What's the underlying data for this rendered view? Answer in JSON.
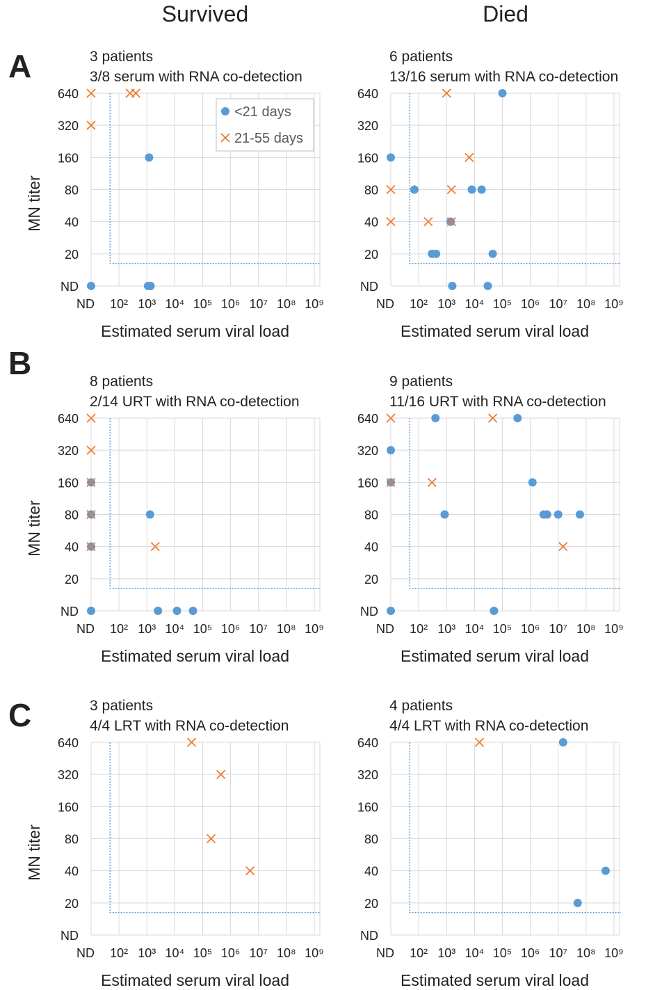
{
  "column_headers": {
    "left": "Survived",
    "right": "Died"
  },
  "row_labels": [
    "A",
    "B",
    "C"
  ],
  "colors": {
    "early": "#5b9bd5",
    "late": "#ed7d31",
    "grid": "#d9d9d9",
    "threshold": "#5b9bd5"
  },
  "chart_data": [
    {
      "type": "scatter",
      "row": "A",
      "column": "Survived",
      "title": "3 patients",
      "subtitle": "3/8 serum with RNA co-detection",
      "xlabel": "Estimated serum viral load",
      "ylabel": "MN titer",
      "x_ticks": [
        "ND",
        "10^2",
        "10^3",
        "10^4",
        "10^5",
        "10^6",
        "10^7",
        "10^8",
        "10^9"
      ],
      "y_ticks": [
        "ND",
        "20",
        "40",
        "80",
        "160",
        "320",
        "640"
      ],
      "legend": {
        "entries": [
          "<21 days",
          "21-55 days"
        ],
        "placement": "top-right"
      },
      "series": [
        {
          "name": "<21 days",
          "points": [
            {
              "x": "ND",
              "y": "ND"
            },
            {
              "x": 1200,
              "y": 160
            },
            {
              "x": 1100,
              "y": "ND"
            },
            {
              "x": 1350,
              "y": "ND"
            }
          ]
        },
        {
          "name": "21-55 days",
          "points": [
            {
              "x": "ND",
              "y": 640
            },
            {
              "x": "ND",
              "y": 320
            },
            {
              "x": 250,
              "y": 640
            },
            {
              "x": 400,
              "y": 640
            }
          ]
        }
      ]
    },
    {
      "type": "scatter",
      "row": "A",
      "column": "Died",
      "title": "6 patients",
      "subtitle": "13/16 serum with RNA co-detection",
      "xlabel": "Estimated serum viral load",
      "ylabel": "",
      "x_ticks": [
        "ND",
        "10^2",
        "10^3",
        "10^4",
        "10^5",
        "10^6",
        "10^7",
        "10^8",
        "10^9"
      ],
      "y_ticks": [
        "ND",
        "20",
        "40",
        "80",
        "160",
        "320",
        "640"
      ],
      "series": [
        {
          "name": "<21 days",
          "points": [
            {
              "x": 100000,
              "y": 640
            },
            {
              "x": "ND",
              "y": 160
            },
            {
              "x": 70,
              "y": 80
            },
            {
              "x": 8000,
              "y": 80
            },
            {
              "x": 18000,
              "y": 80
            },
            {
              "x": 1400,
              "y": 40
            },
            {
              "x": 300,
              "y": 20
            },
            {
              "x": 420,
              "y": 20
            },
            {
              "x": 45000,
              "y": 20
            },
            {
              "x": 1600,
              "y": "ND"
            },
            {
              "x": 30000,
              "y": "ND"
            }
          ]
        },
        {
          "name": "21-55 days",
          "points": [
            {
              "x": 1000,
              "y": 640
            },
            {
              "x": 6500,
              "y": 160
            },
            {
              "x": "ND",
              "y": 80
            },
            {
              "x": 1500,
              "y": 80
            },
            {
              "x": "ND",
              "y": 40
            },
            {
              "x": 220,
              "y": 40
            },
            {
              "x": 1500,
              "y": 40
            }
          ]
        }
      ]
    },
    {
      "type": "scatter",
      "row": "B",
      "column": "Survived",
      "title": "8 patients",
      "subtitle": "2/14 URT with RNA co-detection",
      "xlabel": "Estimated serum viral load",
      "ylabel": "MN titer",
      "x_ticks": [
        "ND",
        "10^2",
        "10^3",
        "10^4",
        "10^5",
        "10^6",
        "10^7",
        "10^8",
        "10^9"
      ],
      "y_ticks": [
        "ND",
        "20",
        "40",
        "80",
        "160",
        "320",
        "640"
      ],
      "series": [
        {
          "name": "<21 days",
          "points": [
            {
              "x": "ND",
              "y": 160
            },
            {
              "x": "ND",
              "y": 80
            },
            {
              "x": "ND",
              "y": 40
            },
            {
              "x": "ND",
              "y": "ND"
            },
            {
              "x": 1300,
              "y": 80
            },
            {
              "x": 2500,
              "y": "ND"
            },
            {
              "x": 12000,
              "y": "ND"
            },
            {
              "x": 45000,
              "y": "ND"
            }
          ]
        },
        {
          "name": "21-55 days",
          "points": [
            {
              "x": "ND",
              "y": 640
            },
            {
              "x": "ND",
              "y": 320
            },
            {
              "x": "ND",
              "y": 160
            },
            {
              "x": "ND",
              "y": 80
            },
            {
              "x": "ND",
              "y": 40
            },
            {
              "x": 2000,
              "y": 40
            }
          ]
        }
      ]
    },
    {
      "type": "scatter",
      "row": "B",
      "column": "Died",
      "title": "9 patients",
      "subtitle": "11/16 URT with RNA co-detection",
      "xlabel": "Estimated serum viral load",
      "ylabel": "",
      "x_ticks": [
        "ND",
        "10^2",
        "10^3",
        "10^4",
        "10^5",
        "10^6",
        "10^7",
        "10^8",
        "10^9"
      ],
      "y_ticks": [
        "ND",
        "20",
        "40",
        "80",
        "160",
        "320",
        "640"
      ],
      "series": [
        {
          "name": "<21 days",
          "points": [
            {
              "x": 400,
              "y": 640
            },
            {
              "x": 350000,
              "y": 640
            },
            {
              "x": "ND",
              "y": 320
            },
            {
              "x": "ND",
              "y": 160
            },
            {
              "x": 1200000,
              "y": 160
            },
            {
              "x": 850,
              "y": 80
            },
            {
              "x": 3000000,
              "y": 80
            },
            {
              "x": 4000000,
              "y": 80
            },
            {
              "x": 10000000,
              "y": 80
            },
            {
              "x": 60000000,
              "y": 80
            },
            {
              "x": "ND",
              "y": "ND"
            },
            {
              "x": 50000,
              "y": "ND"
            }
          ]
        },
        {
          "name": "21-55 days",
          "points": [
            {
              "x": "ND",
              "y": 640
            },
            {
              "x": 45000,
              "y": 640
            },
            {
              "x": "ND",
              "y": 160
            },
            {
              "x": 300,
              "y": 160
            },
            {
              "x": 15000000,
              "y": 40
            }
          ]
        }
      ]
    },
    {
      "type": "scatter",
      "row": "C",
      "column": "Survived",
      "title": "3 patients",
      "subtitle": "4/4 LRT with RNA co-detection",
      "xlabel": "Estimated serum viral load",
      "ylabel": "MN titer",
      "x_ticks": [
        "ND",
        "10^2",
        "10^3",
        "10^4",
        "10^5",
        "10^6",
        "10^7",
        "10^8",
        "10^9"
      ],
      "y_ticks": [
        "ND",
        "20",
        "40",
        "80",
        "160",
        "320",
        "640"
      ],
      "series": [
        {
          "name": "<21 days",
          "points": []
        },
        {
          "name": "21-55 days",
          "points": [
            {
              "x": 40000,
              "y": 640
            },
            {
              "x": 450000,
              "y": 320
            },
            {
              "x": 200000,
              "y": 80
            },
            {
              "x": 5000000,
              "y": 40
            }
          ]
        }
      ]
    },
    {
      "type": "scatter",
      "row": "C",
      "column": "Died",
      "title": "4 patients",
      "subtitle": "4/4 LRT with RNA co-detection",
      "xlabel": "Estimated serum viral load",
      "ylabel": "",
      "x_ticks": [
        "ND",
        "10^2",
        "10^3",
        "10^4",
        "10^5",
        "10^6",
        "10^7",
        "10^8",
        "10^9"
      ],
      "y_ticks": [
        "ND",
        "20",
        "40",
        "80",
        "160",
        "320",
        "640"
      ],
      "series": [
        {
          "name": "<21 days",
          "points": [
            {
              "x": 15000000,
              "y": 640
            },
            {
              "x": 500000000,
              "y": 40
            },
            {
              "x": 50000000,
              "y": 20
            }
          ]
        },
        {
          "name": "21-55 days",
          "points": [
            {
              "x": 15000,
              "y": 640
            }
          ]
        }
      ]
    }
  ]
}
